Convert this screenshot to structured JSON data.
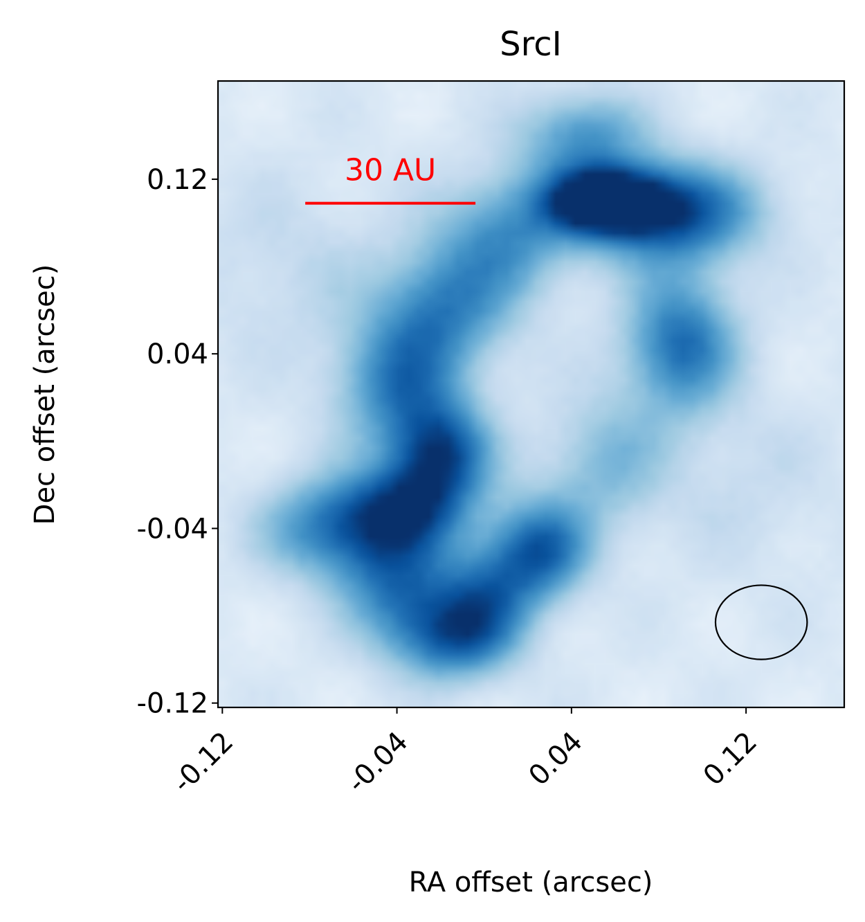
{
  "chart_data": {
    "type": "heatmap",
    "title": "SrcI",
    "xlabel": "RA offset (arcsec)",
    "ylabel": "Dec offset (arcsec)",
    "xlim": [
      -0.122,
      0.165
    ],
    "ylim": [
      -0.122,
      0.165
    ],
    "x_ticks": [
      -0.12,
      -0.04,
      0.04,
      0.12
    ],
    "y_ticks": [
      -0.12,
      -0.04,
      0.04,
      0.12
    ],
    "x_tick_labels": [
      "-0.12",
      "-0.04",
      "0.04",
      "0.12"
    ],
    "y_tick_labels": [
      "-0.12",
      "-0.04",
      "0.04",
      "0.12"
    ],
    "colormap": "Blues",
    "colormap_stops": [
      "#f7fbff",
      "#deebf7",
      "#c6dbef",
      "#9ecae1",
      "#6baed6",
      "#4292c6",
      "#2171b5",
      "#08519c",
      "#08306b"
    ],
    "grid": false,
    "emission_components": [
      {
        "x": 0.055,
        "y": 0.11,
        "sx": 0.018,
        "sy": 0.01,
        "amp": 1.0
      },
      {
        "x": 0.085,
        "y": 0.105,
        "sx": 0.028,
        "sy": 0.016,
        "amp": 0.75
      },
      {
        "x": 0.045,
        "y": 0.14,
        "sx": 0.02,
        "sy": 0.014,
        "amp": 0.45
      },
      {
        "x": 0.09,
        "y": 0.045,
        "sx": 0.018,
        "sy": 0.022,
        "amp": 0.62
      },
      {
        "x": 0.01,
        "y": 0.095,
        "sx": 0.022,
        "sy": 0.02,
        "amp": 0.45
      },
      {
        "x": -0.02,
        "y": 0.06,
        "sx": 0.022,
        "sy": 0.02,
        "amp": 0.5
      },
      {
        "x": -0.04,
        "y": 0.025,
        "sx": 0.02,
        "sy": 0.02,
        "amp": 0.5
      },
      {
        "x": -0.02,
        "y": -0.005,
        "sx": 0.016,
        "sy": 0.016,
        "amp": 0.7
      },
      {
        "x": -0.035,
        "y": -0.03,
        "sx": 0.02,
        "sy": 0.014,
        "amp": 0.62
      },
      {
        "x": -0.07,
        "y": -0.04,
        "sx": 0.022,
        "sy": 0.016,
        "amp": 0.55
      },
      {
        "x": -0.04,
        "y": -0.065,
        "sx": 0.018,
        "sy": 0.018,
        "amp": 0.52
      },
      {
        "x": -0.015,
        "y": -0.09,
        "sx": 0.02,
        "sy": 0.014,
        "amp": 0.6
      },
      {
        "x": 0.0,
        "y": -0.07,
        "sx": 0.016,
        "sy": 0.016,
        "amp": 0.45
      },
      {
        "x": 0.025,
        "y": -0.05,
        "sx": 0.016,
        "sy": 0.016,
        "amp": 0.65
      },
      {
        "x": 0.055,
        "y": -0.01,
        "sx": 0.02,
        "sy": 0.022,
        "amp": 0.3
      },
      {
        "x": -0.09,
        "y": 0.08,
        "sx": 0.03,
        "sy": 0.03,
        "amp": 0.12
      },
      {
        "x": 0.12,
        "y": -0.02,
        "sx": 0.03,
        "sy": 0.03,
        "amp": 0.1
      }
    ],
    "beam": {
      "x": 0.127,
      "y": -0.083,
      "major": 0.021,
      "minor": 0.017
    },
    "scale_bar": {
      "label": "30 AU",
      "x_start": -0.082,
      "x_end": -0.004,
      "y": 0.109,
      "color": "#ff0000"
    }
  }
}
